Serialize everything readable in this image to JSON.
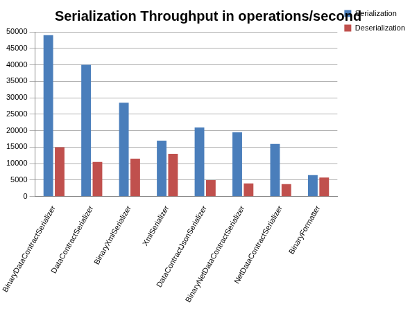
{
  "chart_data": {
    "type": "bar",
    "title": "Serialization Throughput in operations/second",
    "categories": [
      "BinaryDataContractSerializer",
      "DataContractSerializer",
      "BinaryXmlSerializer",
      "XmlSerializer",
      "DataContractJsonSerializer",
      "BinaryNetDataContractSerializer",
      "NetDataContractSerializer",
      "BinaryFormatter"
    ],
    "series": [
      {
        "name": "Serialization",
        "color": "#4a7ebb",
        "values": [
          49000,
          40000,
          28500,
          17000,
          21000,
          19500,
          16000,
          6500
        ]
      },
      {
        "name": "Deserialization",
        "color": "#c0504d",
        "values": [
          15000,
          10500,
          11500,
          13000,
          5000,
          4000,
          3800,
          5800
        ]
      }
    ],
    "ylim": [
      0,
      50000
    ],
    "yticks": [
      0,
      5000,
      10000,
      15000,
      20000,
      25000,
      30000,
      35000,
      40000,
      45000,
      50000
    ],
    "grid": true,
    "legend": "right"
  }
}
